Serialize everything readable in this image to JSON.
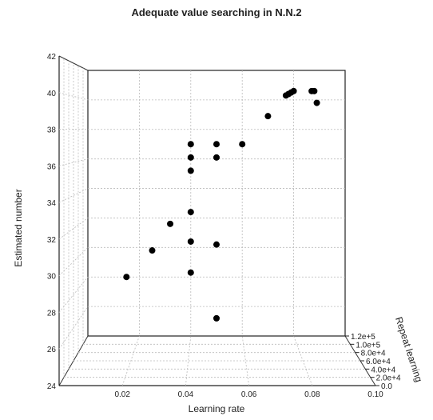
{
  "chart_data": {
    "type": "scatter",
    "title": "Adequate value searching in N.N.2",
    "xlabel": "Learning rate",
    "ylabel": "Estimated number",
    "zlabel": "Repeat learning",
    "xlim": [
      0.0,
      0.1
    ],
    "ylim": [
      24,
      42
    ],
    "zlim": [
      0.0,
      120000
    ],
    "x_ticks": [
      "0.02",
      "0.04",
      "0.06",
      "0.08",
      "0.10"
    ],
    "x_tick_values": [
      0.02,
      0.04,
      0.06,
      0.08,
      0.1
    ],
    "y_ticks": [
      "24",
      "26",
      "28",
      "30",
      "32",
      "34",
      "36",
      "38",
      "40",
      "42"
    ],
    "y_tick_values": [
      24,
      26,
      28,
      30,
      32,
      34,
      36,
      38,
      40,
      42
    ],
    "z_ticks": [
      "0.0",
      "2.0e+4",
      "4.0e+4",
      "6.0e+4",
      "8.0e+4",
      "1.0e+5",
      "1.2e+5"
    ],
    "z_tick_values": [
      0,
      20000,
      40000,
      60000,
      80000,
      100000,
      120000
    ],
    "grid": true,
    "points": [
      {
        "x": 0.05,
        "y": 25.2
      },
      {
        "x": 0.015,
        "y": 28.0
      },
      {
        "x": 0.04,
        "y": 28.3
      },
      {
        "x": 0.025,
        "y": 29.8
      },
      {
        "x": 0.04,
        "y": 30.4
      },
      {
        "x": 0.05,
        "y": 30.2
      },
      {
        "x": 0.032,
        "y": 31.6
      },
      {
        "x": 0.04,
        "y": 32.4
      },
      {
        "x": 0.04,
        "y": 35.2
      },
      {
        "x": 0.04,
        "y": 36.1
      },
      {
        "x": 0.05,
        "y": 36.1
      },
      {
        "x": 0.04,
        "y": 37.0
      },
      {
        "x": 0.05,
        "y": 37.0
      },
      {
        "x": 0.06,
        "y": 37.0
      },
      {
        "x": 0.07,
        "y": 38.9
      },
      {
        "x": 0.077,
        "y": 40.3
      },
      {
        "x": 0.078,
        "y": 40.4
      },
      {
        "x": 0.079,
        "y": 40.5
      },
      {
        "x": 0.08,
        "y": 40.6
      },
      {
        "x": 0.087,
        "y": 40.6
      },
      {
        "x": 0.088,
        "y": 40.6
      },
      {
        "x": 0.089,
        "y": 39.8
      }
    ]
  }
}
